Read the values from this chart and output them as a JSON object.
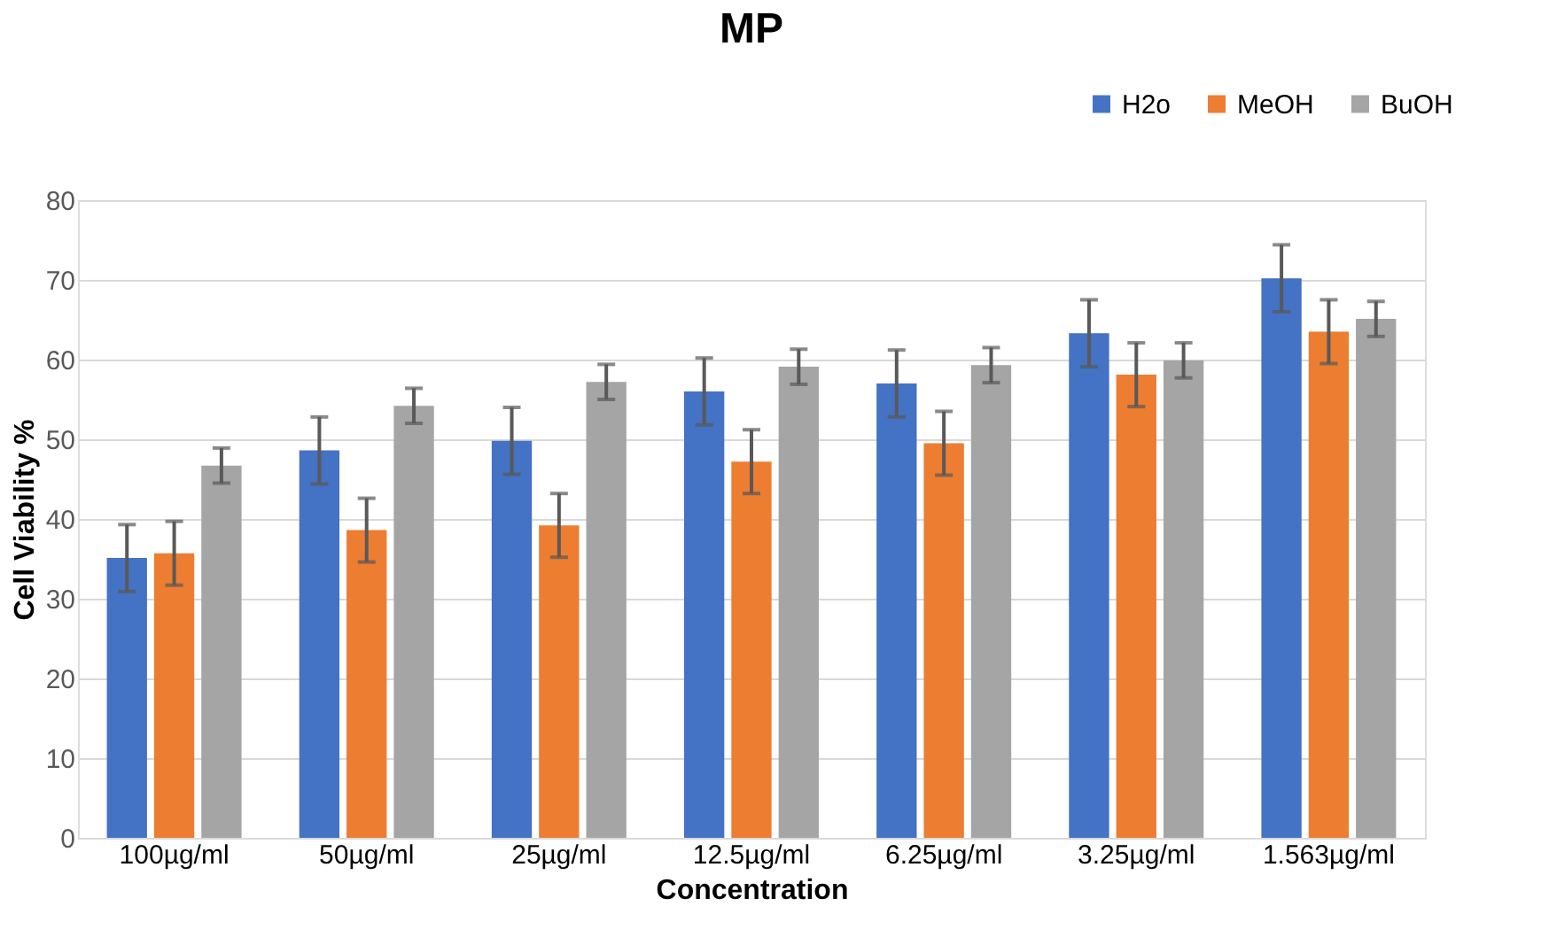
{
  "chart_data": {
    "type": "bar",
    "title": "MP",
    "xlabel": "Concentration",
    "ylabel": "Cell Viability %",
    "categories": [
      "100µg/ml",
      "50µg/ml",
      "25µg/ml",
      "12.5µg/ml",
      "6.25µg/ml",
      "3.25µg/ml",
      "1.563µg/ml"
    ],
    "series": [
      {
        "name": "H2o",
        "color": "#4472c4",
        "values": [
          35.1,
          48.6,
          49.8,
          56.0,
          57.0,
          63.3,
          70.2
        ],
        "errors": [
          4.2,
          4.2,
          4.2,
          4.2,
          4.2,
          4.2,
          4.2
        ]
      },
      {
        "name": "MeOH",
        "color": "#ed7d31",
        "values": [
          35.7,
          38.6,
          39.2,
          47.2,
          49.5,
          58.1,
          63.5
        ],
        "errors": [
          4.0,
          4.0,
          4.0,
          4.0,
          4.0,
          4.0,
          4.0
        ]
      },
      {
        "name": "BuOH",
        "color": "#a5a5a5",
        "values": [
          46.7,
          54.2,
          57.2,
          59.1,
          59.3,
          59.9,
          65.1
        ],
        "errors": [
          2.2,
          2.2,
          2.2,
          2.2,
          2.2,
          2.2,
          2.2
        ]
      }
    ],
    "ylim": [
      0,
      80
    ],
    "yticks": [
      0,
      10,
      20,
      30,
      40,
      50,
      60,
      70,
      80
    ],
    "grid": "y",
    "legend": "top right"
  }
}
